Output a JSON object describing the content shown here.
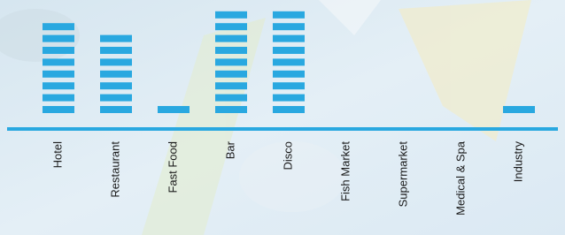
{
  "chart_data": {
    "type": "segmented-bar",
    "categories": [
      "Hotel",
      "Restaurant",
      "Fast Food",
      "Bar",
      "Disco",
      "Fish Market",
      "Supermarket",
      "Medical & Spa",
      "Industry"
    ],
    "values": [
      8,
      7,
      1,
      9,
      9,
      0,
      0,
      0,
      1
    ],
    "color": "#29a8e0"
  }
}
